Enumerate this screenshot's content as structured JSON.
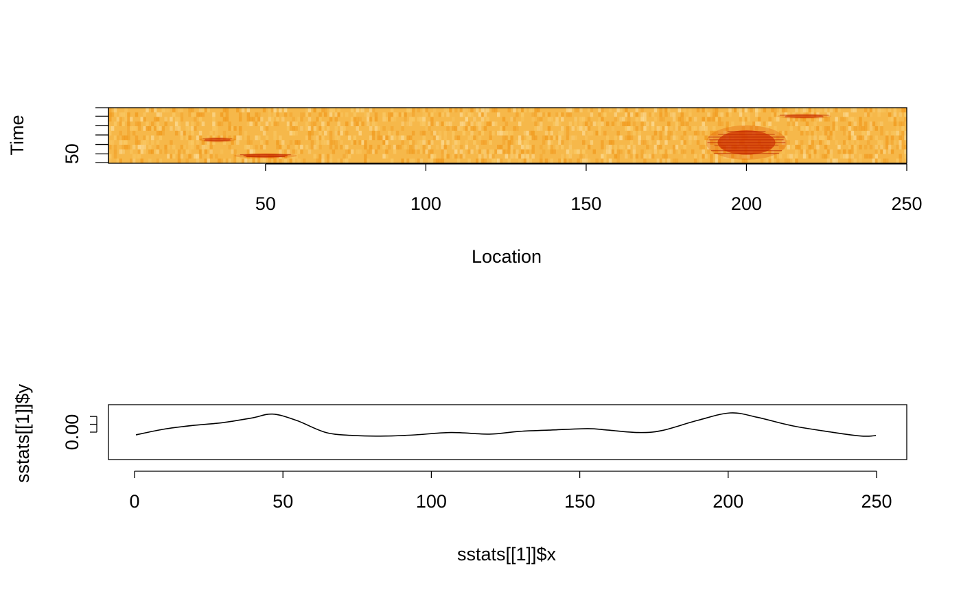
{
  "chart_data": [
    {
      "type": "heatmap",
      "title": "",
      "xlabel": "Location",
      "ylabel": "Time",
      "xlim": [
        1,
        250
      ],
      "ylim": [
        1,
        60
      ],
      "x_ticks": [
        50,
        100,
        150,
        200,
        250
      ],
      "y_ticks": [
        50
      ],
      "y_minor_ticks": [
        1,
        10,
        20,
        30,
        40,
        50,
        60
      ],
      "colormap": [
        "#d03000",
        "#e25a00",
        "#f09010",
        "#f7b030",
        "#fbd070",
        "#fde8b0"
      ],
      "background_color": "#f6b84a",
      "hotspots": [
        {
          "x": 35,
          "y": 35,
          "x_halfwidth": 4,
          "y_halfwidth": 2,
          "intensity": 0.75
        },
        {
          "x": 50,
          "y": 52,
          "x_halfwidth": 7,
          "y_halfwidth": 2,
          "intensity": 0.85
        },
        {
          "x": 200,
          "y": 38,
          "x_halfwidth": 9,
          "y_halfwidth": 13,
          "intensity": 0.9
        },
        {
          "x": 218,
          "y": 10,
          "x_halfwidth": 6,
          "y_halfwidth": 2,
          "intensity": 0.7
        }
      ]
    },
    {
      "type": "line",
      "title": "",
      "xlabel": "sstats[[1]]$x",
      "ylabel": "sstats[[1]]$y",
      "xlim": [
        1,
        250
      ],
      "ylim": [
        -0.0035,
        0.0035
      ],
      "x_ticks": [
        0,
        50,
        100,
        150,
        200,
        250
      ],
      "y_ticks": [
        0.0,
        0.001,
        0.002
      ],
      "y_tick_labels": [
        "0.00",
        "",
        ""
      ],
      "series": [
        {
          "x": [
            1,
            10,
            20,
            30,
            40,
            47,
            55,
            65,
            75,
            85,
            95,
            107,
            120,
            130,
            140,
            153,
            160,
            170,
            178,
            190,
            201,
            210,
            222,
            235,
            245,
            250
          ],
          "y": [
            -0.00035,
            0.00035,
            0.00085,
            0.0012,
            0.0018,
            0.0023,
            0.0015,
            -5e-05,
            -0.00045,
            -0.0005,
            -0.00035,
            -5e-05,
            -0.00025,
            0.0001,
            0.00025,
            0.00045,
            0.00025,
            -5e-05,
            0.0002,
            0.0015,
            0.00245,
            0.0019,
            0.0008,
            0.0,
            -0.0005,
            -0.00045
          ]
        }
      ]
    }
  ]
}
